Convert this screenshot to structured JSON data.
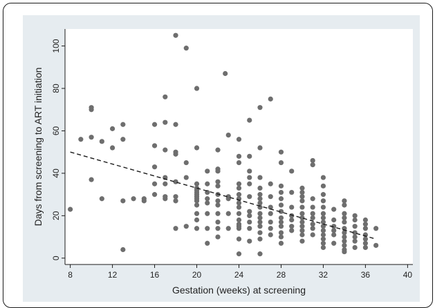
{
  "chart_data": {
    "type": "scatter",
    "title": "",
    "xlabel": "Gestation (weeks) at screening",
    "ylabel": "Days from screening to ART initiation",
    "xlim": [
      7.5,
      40.5
    ],
    "ylim": [
      -3,
      108
    ],
    "x_ticks": [
      8,
      12,
      16,
      20,
      24,
      28,
      32,
      36,
      40
    ],
    "y_ticks": [
      0,
      20,
      40,
      60,
      80,
      100
    ],
    "x_tick_labels": [
      "8",
      "12",
      "16",
      "20",
      "24",
      "28",
      "32",
      "36",
      "40"
    ],
    "y_tick_labels": [
      "0",
      "20",
      "40",
      "60",
      "80",
      "100"
    ],
    "grid": false,
    "series": [
      {
        "marker_color": "#6e6e6e",
        "points": [
          [
            8,
            23
          ],
          [
            9,
            56
          ],
          [
            10,
            70
          ],
          [
            10,
            71
          ],
          [
            10,
            57
          ],
          [
            10,
            37
          ],
          [
            11,
            55
          ],
          [
            11,
            28
          ],
          [
            12,
            61
          ],
          [
            12,
            52
          ],
          [
            13,
            63
          ],
          [
            13,
            56
          ],
          [
            13,
            27
          ],
          [
            13,
            4
          ],
          [
            14,
            28
          ],
          [
            15,
            28
          ],
          [
            15,
            27
          ],
          [
            16,
            63
          ],
          [
            16,
            53
          ],
          [
            16,
            43
          ],
          [
            16,
            35
          ],
          [
            16,
            30
          ],
          [
            17,
            76
          ],
          [
            17,
            64
          ],
          [
            17,
            51
          ],
          [
            17,
            38
          ],
          [
            17,
            35
          ],
          [
            17,
            29
          ],
          [
            17,
            28
          ],
          [
            18,
            105
          ],
          [
            18,
            63
          ],
          [
            18,
            50
          ],
          [
            18,
            49
          ],
          [
            18,
            36
          ],
          [
            18,
            29
          ],
          [
            18,
            27
          ],
          [
            18,
            14
          ],
          [
            19,
            99
          ],
          [
            19,
            45
          ],
          [
            19,
            38
          ],
          [
            19,
            15
          ],
          [
            20,
            80
          ],
          [
            20,
            52
          ],
          [
            20,
            35
          ],
          [
            20,
            33
          ],
          [
            20,
            32
          ],
          [
            20,
            31
          ],
          [
            20,
            30
          ],
          [
            20,
            29
          ],
          [
            20,
            28
          ],
          [
            20,
            27
          ],
          [
            20,
            25
          ],
          [
            20,
            21
          ],
          [
            20,
            18
          ],
          [
            20,
            14
          ],
          [
            21,
            41
          ],
          [
            21,
            35
          ],
          [
            21,
            31
          ],
          [
            21,
            28
          ],
          [
            21,
            26
          ],
          [
            21,
            21
          ],
          [
            21,
            14
          ],
          [
            21,
            7
          ],
          [
            22,
            51
          ],
          [
            22,
            42
          ],
          [
            22,
            41
          ],
          [
            22,
            36
          ],
          [
            22,
            34
          ],
          [
            22,
            30
          ],
          [
            22,
            27
          ],
          [
            22,
            25
          ],
          [
            22,
            21
          ],
          [
            22,
            17
          ],
          [
            22,
            14
          ],
          [
            22,
            10
          ],
          [
            22.7,
            87
          ],
          [
            23,
            58
          ],
          [
            23,
            29
          ],
          [
            23,
            28
          ],
          [
            23,
            21
          ],
          [
            23,
            14
          ],
          [
            24,
            56
          ],
          [
            24,
            48
          ],
          [
            24,
            45
          ],
          [
            24,
            35
          ],
          [
            24,
            33
          ],
          [
            24,
            30
          ],
          [
            24,
            28
          ],
          [
            24,
            26
          ],
          [
            24,
            24
          ],
          [
            24,
            21
          ],
          [
            24,
            18
          ],
          [
            24,
            16
          ],
          [
            24,
            15
          ],
          [
            24,
            14
          ],
          [
            24,
            9
          ],
          [
            24,
            2
          ],
          [
            25,
            65
          ],
          [
            25,
            48
          ],
          [
            25,
            41
          ],
          [
            25,
            38
          ],
          [
            25,
            35
          ],
          [
            25,
            29
          ],
          [
            25,
            22
          ],
          [
            25,
            20
          ],
          [
            25,
            17
          ],
          [
            25,
            14
          ],
          [
            25,
            8
          ],
          [
            26,
            71
          ],
          [
            26,
            52
          ],
          [
            26,
            38
          ],
          [
            26,
            33
          ],
          [
            26,
            30
          ],
          [
            26,
            28
          ],
          [
            26,
            26
          ],
          [
            26,
            24
          ],
          [
            26,
            21
          ],
          [
            26,
            19
          ],
          [
            26,
            17
          ],
          [
            26,
            15
          ],
          [
            26,
            12
          ],
          [
            26,
            9
          ],
          [
            26,
            2
          ],
          [
            27,
            75
          ],
          [
            27,
            35
          ],
          [
            27,
            29
          ],
          [
            27,
            24
          ],
          [
            27,
            21
          ],
          [
            27,
            17
          ],
          [
            27,
            14
          ],
          [
            27,
            11
          ],
          [
            28,
            50
          ],
          [
            28,
            45
          ],
          [
            28,
            34
          ],
          [
            28,
            31
          ],
          [
            28,
            28
          ],
          [
            28,
            25
          ],
          [
            28,
            22
          ],
          [
            28,
            19
          ],
          [
            28,
            17
          ],
          [
            28,
            15
          ],
          [
            28,
            12
          ],
          [
            28,
            10
          ],
          [
            28,
            7
          ],
          [
            29,
            41
          ],
          [
            29,
            31
          ],
          [
            29,
            24
          ],
          [
            29,
            20
          ],
          [
            29,
            18
          ],
          [
            29,
            15
          ],
          [
            29,
            13
          ],
          [
            30,
            33
          ],
          [
            30,
            31
          ],
          [
            30,
            29
          ],
          [
            30,
            27
          ],
          [
            30,
            24
          ],
          [
            30,
            21
          ],
          [
            30,
            19
          ],
          [
            30,
            17
          ],
          [
            30,
            15
          ],
          [
            30,
            13
          ],
          [
            30,
            11
          ],
          [
            30,
            8
          ],
          [
            31,
            46
          ],
          [
            31,
            44
          ],
          [
            31,
            28
          ],
          [
            31,
            24
          ],
          [
            31,
            21
          ],
          [
            31,
            19
          ],
          [
            31,
            16
          ],
          [
            31,
            14
          ],
          [
            31,
            11
          ],
          [
            32,
            38
          ],
          [
            32,
            34
          ],
          [
            32,
            30
          ],
          [
            32,
            27
          ],
          [
            32,
            24
          ],
          [
            32,
            21
          ],
          [
            32,
            19
          ],
          [
            32,
            17
          ],
          [
            32,
            15
          ],
          [
            32,
            13
          ],
          [
            32,
            11
          ],
          [
            32,
            9
          ],
          [
            32,
            7
          ],
          [
            32,
            5
          ],
          [
            33,
            23
          ],
          [
            33,
            18
          ],
          [
            33,
            15
          ],
          [
            33,
            13
          ],
          [
            33,
            11
          ],
          [
            33,
            7
          ],
          [
            34,
            27
          ],
          [
            34,
            25
          ],
          [
            34,
            21
          ],
          [
            34,
            19
          ],
          [
            34,
            17
          ],
          [
            34,
            14
          ],
          [
            34,
            12
          ],
          [
            34,
            10
          ],
          [
            34,
            8
          ],
          [
            34,
            6
          ],
          [
            34,
            4
          ],
          [
            34,
            3
          ],
          [
            35,
            20
          ],
          [
            35,
            18
          ],
          [
            35,
            15
          ],
          [
            35,
            12
          ],
          [
            35,
            10
          ],
          [
            35,
            8
          ],
          [
            35,
            5
          ],
          [
            36,
            18
          ],
          [
            36,
            16
          ],
          [
            36,
            14
          ],
          [
            36,
            11
          ],
          [
            36,
            9
          ],
          [
            36,
            7
          ],
          [
            36,
            5
          ],
          [
            37,
            14
          ],
          [
            37,
            6
          ]
        ]
      }
    ],
    "trend_line": {
      "style": "dashed",
      "color": "#1a1a1a",
      "x": [
        8,
        37
      ],
      "y": [
        50,
        9
      ]
    }
  }
}
